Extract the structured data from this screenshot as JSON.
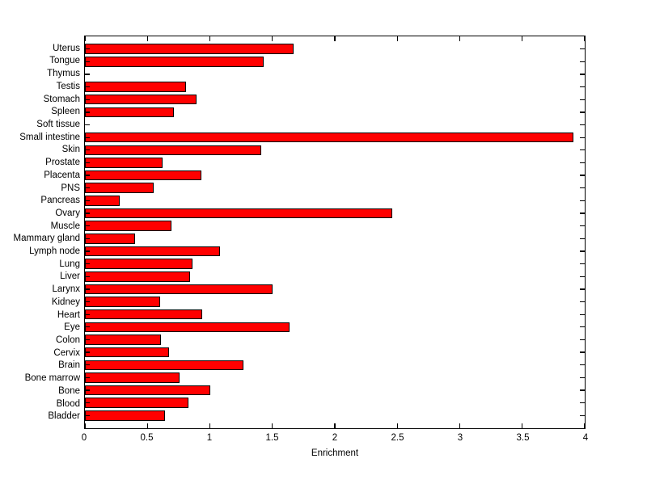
{
  "figure": {
    "background_color": "#ffffff"
  },
  "chart_data": {
    "type": "bar",
    "orientation": "horizontal",
    "title": "",
    "xlabel": "Enrichment",
    "ylabel": "",
    "xlim": [
      0,
      4
    ],
    "xticks": [
      0,
      0.5,
      1,
      1.5,
      2,
      2.5,
      3,
      3.5,
      4
    ],
    "xtick_labels": [
      "0",
      "0.5",
      "1",
      "1.5",
      "2",
      "2.5",
      "3",
      "3.5",
      "4"
    ],
    "grid": false,
    "legend": "none",
    "bar_color": "#ff0000",
    "bar_edge_color": "#000000",
    "axis_color": "#000000",
    "categories": [
      "Uterus",
      "Tongue",
      "Thymus",
      "Testis",
      "Stomach",
      "Spleen",
      "Soft tissue",
      "Small intestine",
      "Skin",
      "Prostate",
      "Placenta",
      "PNS",
      "Pancreas",
      "Ovary",
      "Muscle",
      "Mammary gland",
      "Lymph node",
      "Lung",
      "Liver",
      "Larynx",
      "Kidney",
      "Heart",
      "Eye",
      "Colon",
      "Cervix",
      "Brain",
      "Bone marrow",
      "Bone",
      "Blood",
      "Bladder"
    ],
    "values": [
      1.67,
      1.43,
      0,
      0.81,
      0.89,
      0.71,
      0,
      3.91,
      1.41,
      0.62,
      0.93,
      0.55,
      0.28,
      2.46,
      0.69,
      0.4,
      1.08,
      0.86,
      0.84,
      1.5,
      0.6,
      0.94,
      1.64,
      0.61,
      0.67,
      1.27,
      0.76,
      1.0,
      0.83,
      0.64
    ]
  }
}
